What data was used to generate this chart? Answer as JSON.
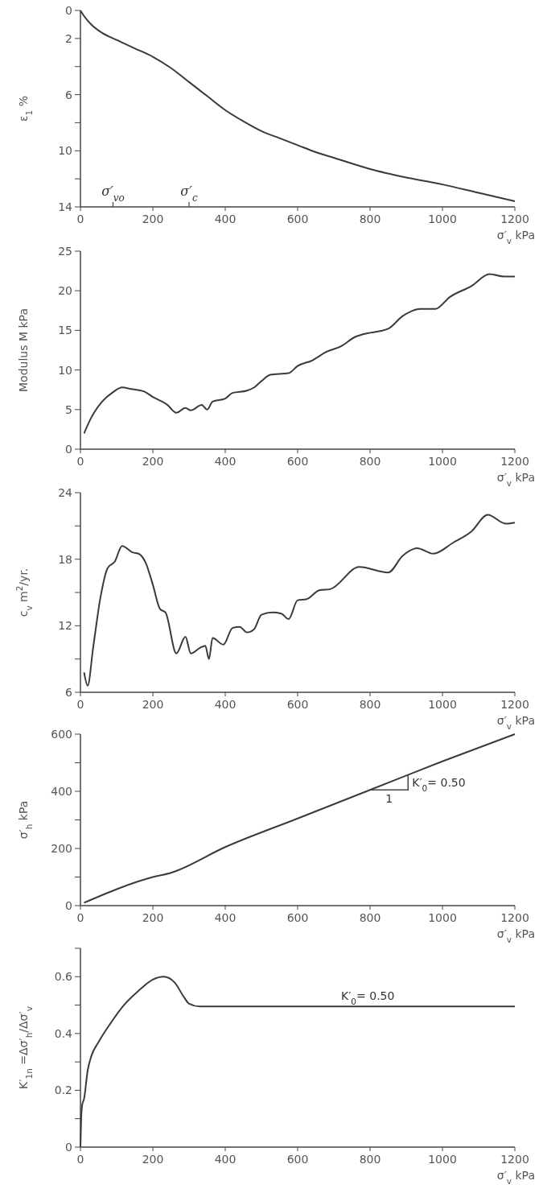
{
  "chart_data": [
    {
      "type": "line",
      "xlabel": "σ′$_{v}$  kPa",
      "ylabel": "ε$_{1}$ %",
      "xlim": [
        0,
        1200
      ],
      "ylim": [
        14,
        0
      ],
      "xticks": [
        0,
        200,
        400,
        600,
        800,
        1000,
        1200
      ],
      "yticks": [
        0,
        2,
        {
          "value": 4,
          "label": null
        },
        6,
        {
          "value": 8,
          "label": null
        },
        10,
        {
          "value": 12,
          "label": null
        },
        14
      ],
      "x": [
        0,
        10,
        30,
        60,
        100,
        150,
        200,
        250,
        300,
        350,
        400,
        450,
        500,
        550,
        600,
        650,
        700,
        800,
        900,
        1000,
        1100,
        1200
      ],
      "series": [
        {
          "color": "#3a3a3a",
          "values": [
            0,
            0.4,
            1.0,
            1.6,
            2.1,
            2.7,
            3.3,
            4.1,
            5.1,
            6.1,
            7.1,
            7.9,
            8.6,
            9.1,
            9.6,
            10.1,
            10.5,
            11.3,
            11.9,
            12.4,
            13.0,
            13.6
          ]
        }
      ],
      "annotations": [
        "σ′$_{vo}$",
        "σ′$_{c}$"
      ]
    },
    {
      "type": "line",
      "xlabel": "σ′$_{v}$  kPa",
      "ylabel": "Modulus M kPa",
      "xlim": [
        0,
        1200
      ],
      "ylim": [
        0,
        25
      ],
      "xticks": [
        0,
        200,
        400,
        600,
        800,
        1000,
        1200
      ],
      "yticks": [
        0,
        5,
        10,
        15,
        20,
        25
      ],
      "x": [
        10,
        30,
        60,
        90,
        115,
        140,
        175,
        200,
        240,
        265,
        290,
        305,
        335,
        350,
        365,
        400,
        420,
        460,
        480,
        500,
        525,
        575,
        600,
        640,
        680,
        720,
        760,
        780,
        850,
        890,
        940,
        980,
        1020,
        1080,
        1130,
        1170,
        1200
      ],
      "series": [
        {
          "color": "#3a3a3a",
          "values": [
            2,
            4,
            6,
            7.2,
            7.8,
            7.6,
            7.3,
            6.6,
            5.6,
            4.6,
            5.2,
            4.9,
            5.6,
            5.0,
            6.0,
            6.4,
            7.1,
            7.4,
            7.8,
            8.6,
            9.4,
            9.6,
            10.5,
            11.2,
            12.3,
            13.0,
            14.2,
            14.5,
            15.2,
            16.8,
            17.7,
            17.7,
            19.2,
            20.6,
            22.1,
            21.8,
            21.8
          ]
        }
      ]
    },
    {
      "type": "line",
      "xlabel": "σ′$_{v}$  kPa",
      "ylabel": "c$_{v}$  m$^{2}$/yr.",
      "xlim": [
        0,
        1200
      ],
      "ylim": [
        6,
        24
      ],
      "xticks": [
        0,
        200,
        400,
        600,
        800,
        1000,
        1200
      ],
      "yticks": [
        6,
        {
          "value": 9,
          "label": null
        },
        12,
        {
          "value": 15,
          "label": null
        },
        18,
        {
          "value": 21,
          "label": null
        },
        24
      ],
      "x": [
        10,
        20,
        35,
        55,
        75,
        95,
        115,
        145,
        160,
        180,
        200,
        220,
        235,
        265,
        290,
        305,
        330,
        345,
        355,
        365,
        395,
        420,
        440,
        460,
        480,
        500,
        530,
        555,
        575,
        600,
        625,
        660,
        690,
        770,
        850,
        890,
        930,
        975,
        1030,
        1080,
        1125,
        1175,
        1200
      ],
      "series": [
        {
          "color": "#3a3a3a",
          "values": [
            7.8,
            6.6,
            10,
            14.5,
            17.2,
            17.8,
            19.2,
            18.6,
            18.5,
            17.7,
            15.7,
            13.5,
            13.2,
            9.5,
            11,
            9.5,
            10,
            10.2,
            9,
            10.9,
            10.3,
            11.8,
            11.9,
            11.4,
            11.7,
            13.0,
            13.2,
            13.1,
            12.6,
            14.3,
            14.4,
            15.2,
            15.3,
            17.3,
            16.8,
            18.3,
            19,
            18.5,
            19.5,
            20.5,
            22,
            21.2,
            21.3
          ]
        }
      ]
    },
    {
      "type": "line",
      "xlabel": "σ′$_{v}$  kPa",
      "ylabel": "σ′$_{h}$  kPa",
      "xlim": [
        0,
        1200
      ],
      "ylim": [
        0,
        600
      ],
      "xticks": [
        0,
        200,
        400,
        600,
        800,
        1000,
        1200
      ],
      "yticks": [
        0,
        {
          "value": 100,
          "label": null
        },
        200,
        {
          "value": 300,
          "label": null
        },
        400,
        {
          "value": 500,
          "label": null
        },
        600
      ],
      "x": [
        10,
        200,
        250,
        400,
        600,
        800,
        1000,
        1200
      ],
      "series": [
        {
          "color": "#3a3a3a",
          "values": [
            10,
            100,
            115,
            205,
            305,
            405,
            505,
            600
          ]
        }
      ],
      "annotations": [
        {
          "text": "K′$_{0}$= 0.50",
          "x": 905,
          "y": 457
        },
        {
          "text": "1",
          "x": 800,
          "y": 405
        }
      ]
    },
    {
      "type": "line",
      "xlabel": "σ′$_{v}$  kPa",
      "ylabel": "K′$_{1n}$ =Δσ′$_{h}$/Δσ′$_{v}$",
      "xlim": [
        0,
        1200
      ],
      "ylim": [
        0,
        0.7
      ],
      "xticks": [
        0,
        200,
        400,
        600,
        800,
        1000,
        1200
      ],
      "yticks": [
        0,
        {
          "value": 0.1,
          "label": null
        },
        {
          "value": 0.2,
          "label": "0.2"
        },
        {
          "value": 0.3,
          "label": null
        },
        {
          "value": 0.4,
          "label": "0.4"
        },
        {
          "value": 0.5,
          "label": null
        },
        {
          "value": 0.6,
          "label": "0.6"
        },
        {
          "value": 0.7,
          "label": null
        }
      ],
      "x": [
        0,
        2,
        5,
        10,
        20,
        30,
        50,
        80,
        120,
        160,
        200,
        230,
        260,
        285,
        300,
        330,
        400,
        1200
      ],
      "series": [
        {
          "color": "#3a3a3a",
          "values": [
            0,
            0.1,
            0.15,
            0.17,
            0.27,
            0.32,
            0.37,
            0.43,
            0.5,
            0.55,
            0.59,
            0.6,
            0.58,
            0.53,
            0.505,
            0.495,
            0.495,
            0.495
          ]
        }
      ],
      "annotations": [
        "K′$_{0}$= 0.50"
      ]
    }
  ]
}
